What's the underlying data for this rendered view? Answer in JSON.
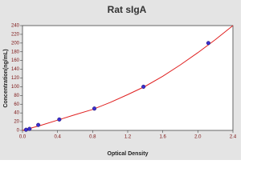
{
  "chart_data": {
    "type": "scatter",
    "title": "Rat sIgA",
    "x_label": "Optical Density",
    "y_label": "Concentration(ng/mL)",
    "points": {
      "color": "#3a2fd0",
      "x": [
        0.04,
        0.08,
        0.18,
        0.42,
        0.82,
        1.38,
        2.12
      ],
      "values": [
        1.5,
        3.5,
        12.5,
        25,
        50,
        100,
        200
      ]
    },
    "fit": {
      "color": "#e02020",
      "x": [
        0,
        0.2,
        0.4,
        0.6,
        0.8,
        1.0,
        1.2,
        1.4,
        1.6,
        1.8,
        2.0,
        2.2,
        2.4
      ],
      "values": [
        0,
        11,
        23.5,
        36,
        48,
        64,
        82,
        101,
        124,
        150,
        178,
        208,
        240
      ]
    },
    "xlim": [
      0,
      2.4
    ],
    "ylim": [
      0,
      240
    ],
    "xticks": [
      {
        "value": 0,
        "label": "0.0"
      },
      0.4,
      0.8,
      1.2,
      1.6,
      {
        "value": 2,
        "label": "2.0"
      },
      2.4
    ],
    "yticks": [
      0,
      20,
      40,
      60,
      80,
      100,
      120,
      140,
      160,
      180,
      200,
      220,
      240
    ],
    "grid": false
  }
}
